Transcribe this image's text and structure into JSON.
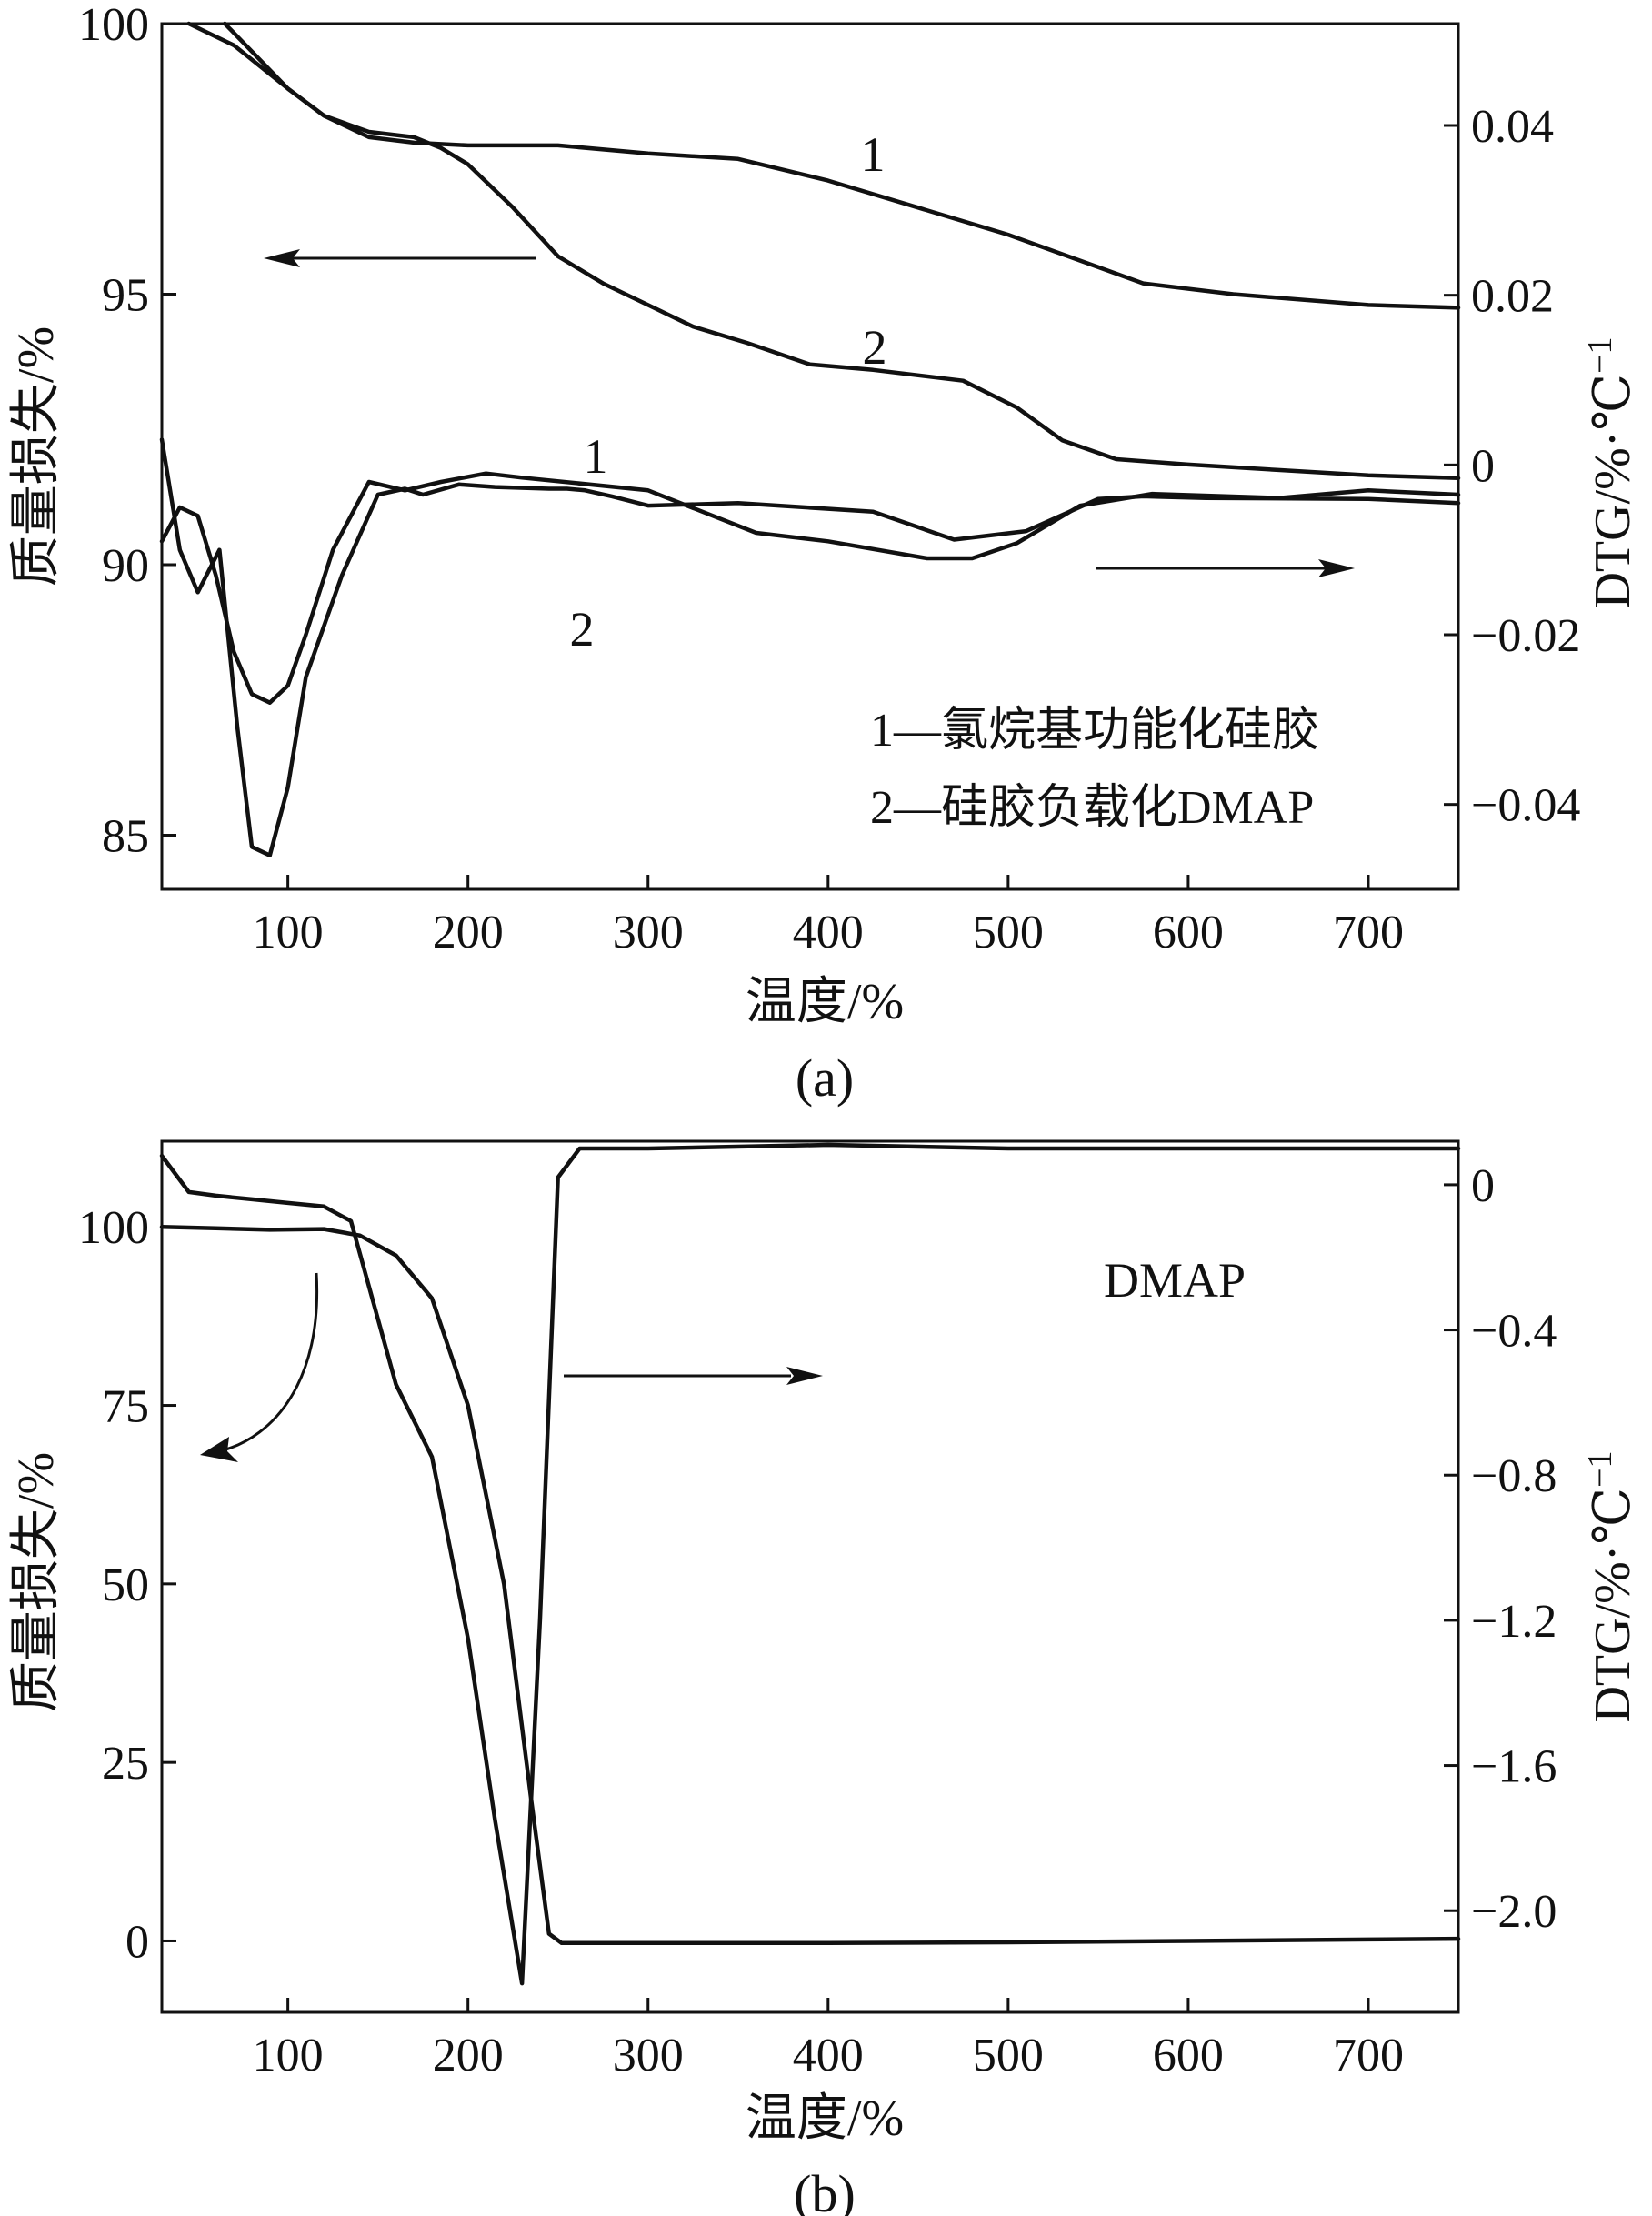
{
  "chart_data": [
    {
      "id": "a",
      "type": "line",
      "panel_label": "(a)",
      "xlabel": "温度/%",
      "ylabel_left": "质量损失/%",
      "ylabel_right": "DTG/%·℃",
      "ylabel_right_sup": "−1",
      "xlim": [
        30,
        750
      ],
      "ylim_left": [
        84,
        100
      ],
      "ylim_right": [
        -0.05,
        0.052
      ],
      "x_ticks": [
        100,
        200,
        300,
        400,
        500,
        600,
        700
      ],
      "x_tick_labels": [
        "100",
        "200",
        "300",
        "400",
        "500",
        "600",
        "700"
      ],
      "y_left_ticks": [
        85,
        90,
        95,
        100
      ],
      "y_left_tick_labels": [
        "85",
        "90",
        "95",
        "100"
      ],
      "y_right_ticks": [
        -0.04,
        -0.02,
        0,
        0.02,
        0.04
      ],
      "y_right_tick_labels": [
        "−0.04",
        "−0.02",
        "0",
        "0.02",
        "0.04"
      ],
      "legend": [
        "1—氯烷基功能化硅胶",
        "2—硅胶负载化DMAP"
      ],
      "series": [
        {
          "name": "1 TG",
          "axis": "left",
          "x": [
            45,
            70,
            100,
            120,
            145,
            170,
            200,
            250,
            300,
            350,
            400,
            450,
            500,
            550,
            575,
            625,
            700,
            750
          ],
          "y": [
            100,
            99.6,
            98.8,
            98.3,
            97.9,
            97.8,
            97.75,
            97.75,
            97.6,
            97.5,
            97.1,
            96.6,
            96.1,
            95.5,
            95.2,
            95.0,
            94.8,
            94.75
          ]
        },
        {
          "name": "2 TG",
          "axis": "left",
          "x": [
            65,
            100,
            120,
            145,
            170,
            185,
            200,
            225,
            250,
            275,
            300,
            325,
            355,
            390,
            425,
            475,
            505,
            530,
            560,
            600,
            650,
            700,
            750
          ],
          "y": [
            100,
            98.8,
            98.3,
            98.0,
            97.9,
            97.7,
            97.4,
            96.6,
            95.7,
            95.2,
            94.8,
            94.4,
            94.1,
            93.7,
            93.6,
            93.4,
            92.9,
            92.3,
            91.95,
            91.85,
            91.75,
            91.65,
            91.6
          ]
        },
        {
          "name": "1 DTG",
          "axis": "right",
          "x": [
            30,
            40,
            50,
            60,
            70,
            80,
            90,
            100,
            110,
            125,
            145,
            165,
            185,
            210,
            230,
            300,
            360,
            400,
            455,
            480,
            505,
            540,
            580,
            650,
            700,
            750
          ],
          "y": [
            -0.009,
            -0.005,
            -0.006,
            -0.013,
            -0.022,
            -0.027,
            -0.028,
            -0.026,
            -0.02,
            -0.01,
            -0.002,
            -0.003,
            -0.002,
            -0.001,
            -0.0015,
            -0.003,
            -0.008,
            -0.009,
            -0.011,
            -0.011,
            -0.0092,
            -0.0048,
            -0.0034,
            -0.0039,
            -0.003,
            -0.0035
          ]
        },
        {
          "name": "2 DTG",
          "axis": "right",
          "x": [
            30,
            40,
            50,
            62,
            72,
            80,
            90,
            100,
            110,
            130,
            150,
            165,
            175,
            195,
            215,
            245,
            255,
            265,
            280,
            300,
            350,
            425,
            470,
            510,
            550,
            575,
            610,
            700,
            750
          ],
          "y": [
            0.003,
            -0.01,
            -0.015,
            -0.01,
            -0.031,
            -0.045,
            -0.046,
            -0.038,
            -0.025,
            -0.013,
            -0.0035,
            -0.0028,
            -0.0035,
            -0.0023,
            -0.0026,
            -0.0028,
            -0.0028,
            -0.003,
            -0.0037,
            -0.0048,
            -0.0045,
            -0.0055,
            -0.0088,
            -0.0078,
            -0.004,
            -0.0037,
            -0.0039,
            -0.004,
            -0.0045
          ]
        }
      ],
      "curve_labels": [
        "1",
        "2",
        "1",
        "2"
      ]
    },
    {
      "id": "b",
      "type": "line",
      "panel_label": "(b)",
      "title": "DMAP",
      "xlabel": "温度/%",
      "ylabel_left": "质量损失/%",
      "ylabel_right": "DTG/%·℃",
      "ylabel_right_sup": "−1",
      "xlim": [
        30,
        750
      ],
      "ylim_left": [
        -10,
        112
      ],
      "ylim_right": [
        -2.28,
        0.12
      ],
      "x_ticks": [
        100,
        200,
        300,
        400,
        500,
        600,
        700
      ],
      "x_tick_labels": [
        "100",
        "200",
        "300",
        "400",
        "500",
        "600",
        "700"
      ],
      "y_left_ticks": [
        0,
        25,
        50,
        75,
        100
      ],
      "y_left_tick_labels": [
        "0",
        "25",
        "50",
        "75",
        "100"
      ],
      "y_right_ticks": [
        -2.0,
        -1.6,
        -1.2,
        -0.8,
        -0.4,
        0
      ],
      "y_right_tick_labels": [
        "−2.0",
        "−1.6",
        "−1.2",
        "−0.8",
        "−0.4",
        "0"
      ],
      "series": [
        {
          "name": "DMAP TG",
          "axis": "left",
          "x": [
            30,
            60,
            90,
            120,
            140,
            160,
            180,
            200,
            220,
            235,
            245,
            252,
            300,
            400,
            500,
            600,
            700,
            750
          ],
          "y": [
            100,
            99.8,
            99.6,
            99.7,
            98.8,
            96.0,
            90,
            75,
            50,
            20,
            1.0,
            -0.3,
            -0.3,
            -0.3,
            -0.2,
            0,
            0.2,
            0.3
          ]
        },
        {
          "name": "DMAP DTG",
          "axis": "right",
          "x": [
            30,
            45,
            60,
            80,
            100,
            120,
            135,
            160,
            180,
            200,
            215,
            230,
            240,
            250,
            262,
            300,
            400,
            500,
            600,
            700,
            750
          ],
          "y": [
            0.08,
            -0.02,
            -0.03,
            -0.04,
            -0.05,
            -0.06,
            -0.1,
            -0.55,
            -0.75,
            -1.25,
            -1.75,
            -2.2,
            -1.2,
            0.02,
            0.1,
            0.1,
            0.11,
            0.1,
            0.1,
            0.1,
            0.1
          ]
        }
      ]
    }
  ]
}
